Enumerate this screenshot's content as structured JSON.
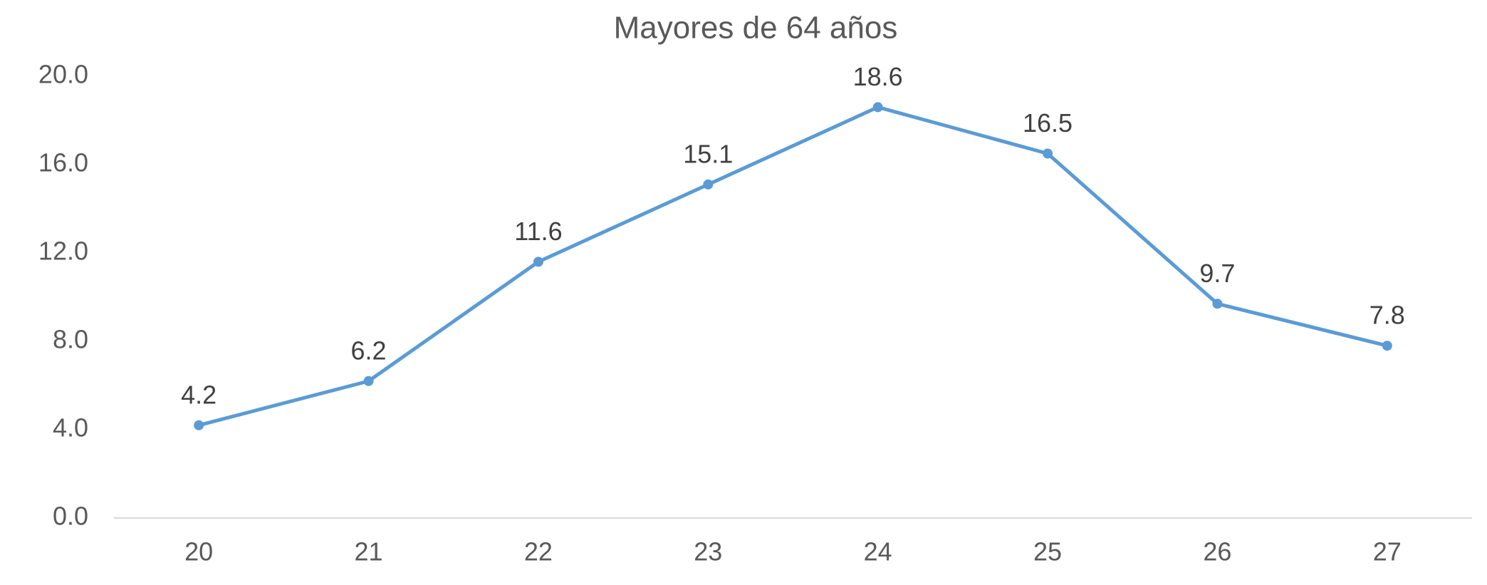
{
  "chart_data": {
    "type": "line",
    "title": "Mayores de 64 años",
    "categories": [
      "20",
      "21",
      "22",
      "23",
      "24",
      "25",
      "26",
      "27"
    ],
    "series": [
      {
        "color": "#5b9bd5",
        "values": [
          4.2,
          6.2,
          11.6,
          15.1,
          18.6,
          16.5,
          9.7,
          7.8
        ]
      }
    ],
    "ylim": [
      0,
      20
    ],
    "yticks": [
      {
        "value": 0,
        "label": "0.0"
      },
      {
        "value": 4,
        "label": "4.0"
      },
      {
        "value": 8,
        "label": "8.0"
      },
      {
        "value": 12,
        "label": "12.0"
      },
      {
        "value": 16,
        "label": "16.0"
      },
      {
        "value": 20,
        "label": "20.0"
      }
    ],
    "grid": false
  }
}
